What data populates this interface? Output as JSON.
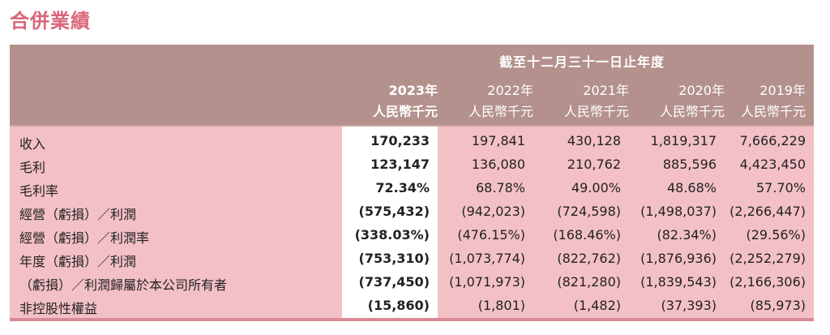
{
  "title": "合併業績",
  "header": {
    "period": "截至十二月三十一日止年度",
    "columns": [
      {
        "year": "2023年",
        "unit": "人民幣千元"
      },
      {
        "year": "2022年",
        "unit": "人民幣千元"
      },
      {
        "year": "2021年",
        "unit": "人民幣千元"
      },
      {
        "year": "2020年",
        "unit": "人民幣千元"
      },
      {
        "year": "2019年",
        "unit": "人民幣千元"
      }
    ]
  },
  "rows": [
    {
      "label": "收入",
      "values": [
        "170,233",
        "197,841",
        "430,128",
        "1,819,317",
        "7,666,229"
      ]
    },
    {
      "label": "毛利",
      "values": [
        "123,147",
        "136,080",
        "210,762",
        "885,596",
        "4,423,450"
      ]
    },
    {
      "label": "毛利率",
      "values": [
        "72.34%",
        "68.78%",
        "49.00%",
        "48.68%",
        "57.70%"
      ]
    },
    {
      "label": "經營（虧損）／利潤",
      "values": [
        "(575,432)",
        "(942,023)",
        "(724,598)",
        "(1,498,037)",
        "(2,266,447)"
      ]
    },
    {
      "label": "經營（虧損）／利潤率",
      "values": [
        "(338.03%)",
        "(476.15%)",
        "(168.46%)",
        "(82.34%)",
        "(29.56%)"
      ]
    },
    {
      "label": "年度（虧損）／利潤",
      "values": [
        "(753,310)",
        "(1,073,774)",
        "(822,762)",
        "(1,876,936)",
        "(2,252,279)"
      ]
    },
    {
      "label": "（虧損）／利潤歸屬於本公司所有者",
      "values": [
        "(737,450)",
        "(1,071,973)",
        "(821,280)",
        "(1,839,543)",
        "(2,166,306)"
      ]
    },
    {
      "label": "非控股性權益",
      "values": [
        "(15,860)",
        "(1,801)",
        "(1,482)",
        "(37,393)",
        "(85,973)"
      ]
    }
  ],
  "colors": {
    "title": "#d9667a",
    "header_bg": "#b4918d",
    "body_bg": "#f3c0c6",
    "current_col_bg": "#ffffff"
  }
}
